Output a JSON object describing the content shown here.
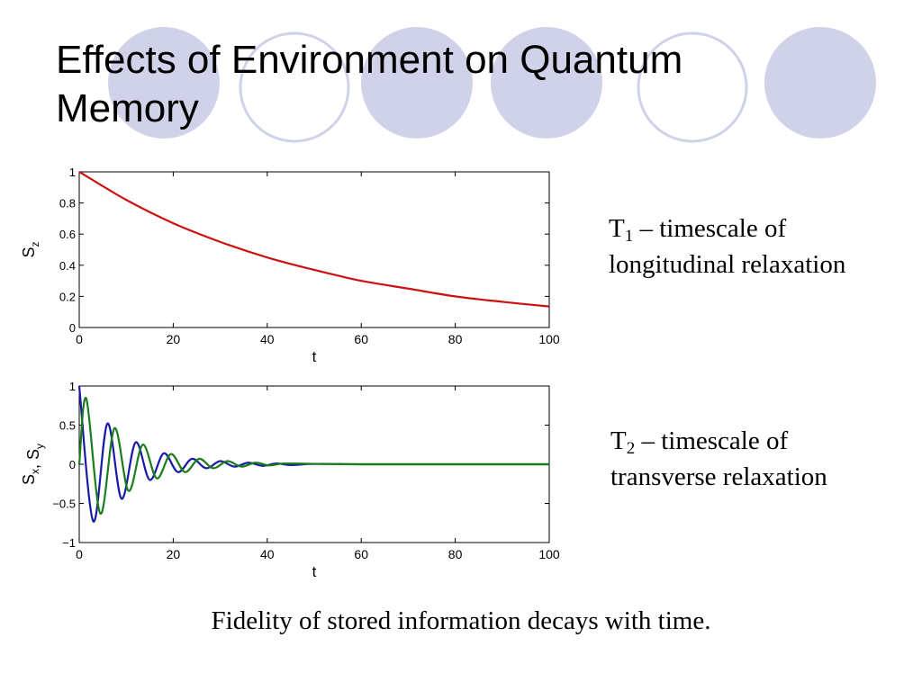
{
  "slide": {
    "title": "Effects of Environment on Quantum Memory",
    "notes": [
      {
        "symbol": "T",
        "index": "1",
        "rest": " – timescale of",
        "line2": "longitudinal relaxation"
      },
      {
        "symbol": "T",
        "index": "2",
        "rest": " – timescale of",
        "line2": "transverse relaxation"
      }
    ],
    "caption": "Fidelity of stored information decays with time.",
    "colors": {
      "circle_fill": "#d0d2ea",
      "circle_stroke": "#d0d2ea",
      "red_curve": "#cc1111",
      "blue_curve": "#1a1aa6",
      "green_curve": "#1b7d1b"
    }
  },
  "chart_data": [
    {
      "type": "line",
      "xlabel": "t",
      "ylabel": "S_z",
      "xlim": [
        0,
        100
      ],
      "ylim": [
        0,
        1
      ],
      "xticks": [
        0,
        20,
        40,
        60,
        80,
        100
      ],
      "yticks": [
        0,
        0.2,
        0.4,
        0.6,
        0.8,
        1
      ],
      "ytick_labels": [
        "0",
        "0.2",
        "0.4",
        "0.6",
        "0.8",
        "1"
      ],
      "grid": false,
      "series": [
        {
          "color": "#cc1111",
          "x": [
            0,
            10,
            20,
            30,
            40,
            50,
            60,
            70,
            80,
            90,
            100
          ],
          "y": [
            1.0,
            0.82,
            0.67,
            0.55,
            0.45,
            0.37,
            0.3,
            0.25,
            0.2,
            0.165,
            0.135
          ]
        }
      ]
    },
    {
      "type": "line",
      "xlabel": "t",
      "ylabel": "S_x, S_y",
      "xlim": [
        0,
        100
      ],
      "ylim": [
        -1,
        1
      ],
      "xticks": [
        0,
        20,
        40,
        60,
        80,
        100
      ],
      "yticks": [
        -1,
        -0.5,
        0,
        0.5,
        1
      ],
      "ytick_labels": [
        "−1",
        "−0.5",
        "0",
        "0.5",
        "1"
      ],
      "grid": false,
      "series": [
        {
          "color": "#1a1aa6",
          "x": [
            0,
            3,
            6,
            9,
            12,
            15,
            18,
            21,
            24,
            27,
            30,
            33,
            36,
            39,
            42,
            45,
            50,
            60,
            70,
            80,
            90,
            100
          ],
          "y": [
            1.0,
            -0.73,
            0.52,
            -0.44,
            0.28,
            -0.2,
            0.14,
            -0.1,
            0.07,
            -0.05,
            0.04,
            -0.03,
            0.02,
            -0.02,
            0.01,
            -0.01,
            0.005,
            0,
            0,
            0,
            0,
            0
          ]
        },
        {
          "color": "#1b7d1b",
          "x": [
            0,
            1.5,
            4.5,
            7.5,
            10.5,
            13.5,
            16.5,
            19.5,
            22.5,
            25.5,
            28.5,
            31.5,
            34.5,
            37.5,
            40.5,
            43.5,
            50,
            60,
            70,
            80,
            90,
            100
          ],
          "y": [
            0,
            0.84,
            -0.63,
            0.46,
            -0.34,
            0.25,
            -0.18,
            0.13,
            -0.1,
            0.07,
            -0.05,
            0.04,
            -0.03,
            0.02,
            -0.015,
            0.01,
            0.005,
            0,
            0,
            0,
            0,
            0
          ]
        }
      ]
    }
  ]
}
